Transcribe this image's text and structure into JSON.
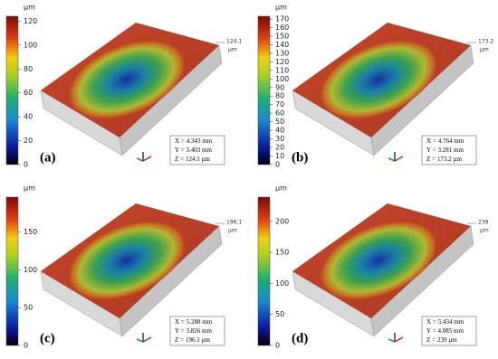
{
  "panels": [
    {
      "label": "(a)",
      "unit": "µm",
      "colorbar_ticks": [
        0,
        20,
        40,
        60,
        80,
        100,
        120
      ],
      "peak": 124.1,
      "peak_unit": "µm",
      "readout": [
        {
          "label": "X =",
          "value": "4.343 mm"
        },
        {
          "label": "Y =",
          "value": "3.403 mm"
        },
        {
          "label": "Z =",
          "value": "124.1 µm"
        }
      ]
    },
    {
      "label": "(b)",
      "unit": "µm",
      "colorbar_ticks": [
        0,
        10,
        20,
        30,
        40,
        50,
        60,
        70,
        80,
        90,
        100,
        110,
        120,
        130,
        140,
        150,
        160,
        170
      ],
      "peak": 173.2,
      "peak_unit": "µm",
      "readout": [
        {
          "label": "X =",
          "value": "4.764 mm"
        },
        {
          "label": "Y =",
          "value": "3.281 mm"
        },
        {
          "label": "Z =",
          "value": "173.2 µm"
        }
      ]
    },
    {
      "label": "(c)",
      "unit": "µm",
      "colorbar_ticks": [
        0,
        50,
        100,
        150
      ],
      "peak": 196.1,
      "peak_unit": "µm",
      "readout": [
        {
          "label": "X =",
          "value": "5.288 mm"
        },
        {
          "label": "Y =",
          "value": "3.826 mm"
        },
        {
          "label": "Z =",
          "value": "196.1 µm"
        }
      ]
    },
    {
      "label": "(d)",
      "unit": "µm",
      "colorbar_ticks": [
        0,
        50,
        100,
        150,
        200
      ],
      "peak": 239,
      "peak_unit": "µm",
      "readout": [
        {
          "label": "X =",
          "value": "5.434 mm"
        },
        {
          "label": "Y =",
          "value": "4.085 mm"
        },
        {
          "label": "Z =",
          "value": "239 µm"
        }
      ]
    }
  ]
}
